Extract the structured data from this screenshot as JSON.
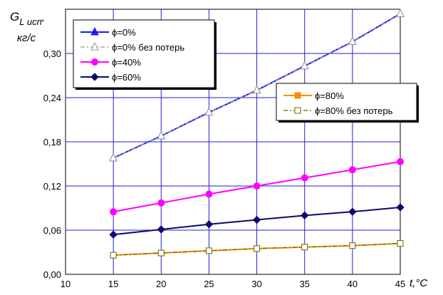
{
  "chart_data": {
    "type": "line",
    "ylabel_main": "G",
    "ylabel_sub": "L исп",
    "ylabel_sep": ",",
    "ylabel_units": "кг/с",
    "xlabel": "t,°C",
    "xlim": [
      10,
      45
    ],
    "ylim": [
      0,
      0.36
    ],
    "x_ticks": [
      "10",
      "15",
      "20",
      "25",
      "30",
      "35",
      "40",
      "45"
    ],
    "y_ticks": [
      "0,00",
      "0,06",
      "0,12",
      "0,18",
      "0,24",
      "0,30"
    ],
    "grid": true,
    "grid_color": "#2222cc",
    "x": [
      15,
      20,
      25,
      30,
      35,
      40,
      45
    ],
    "series": [
      {
        "name": "ϕ=0%",
        "values": [
          0.158,
          0.188,
          0.22,
          0.25,
          0.283,
          0.316,
          0.354
        ],
        "color": "#1a1aff",
        "marker": "triangle-filled",
        "dash": "solid"
      },
      {
        "name": "ϕ=0%  без потерь",
        "values": [
          0.158,
          0.188,
          0.22,
          0.25,
          0.283,
          0.316,
          0.354
        ],
        "color": "#999999",
        "marker": "triangle-open",
        "dash": "dashed"
      },
      {
        "name": "ϕ=40%",
        "values": [
          0.085,
          0.097,
          0.109,
          0.12,
          0.131,
          0.142,
          0.153
        ],
        "color": "#ff00ff",
        "marker": "circle-filled",
        "dash": "solid"
      },
      {
        "name": "ϕ=60%",
        "values": [
          0.054,
          0.061,
          0.068,
          0.074,
          0.08,
          0.085,
          0.091
        ],
        "color": "#0a0a6e",
        "marker": "diamond-filled",
        "dash": "solid"
      },
      {
        "name": "ϕ=80%",
        "values": [
          0.026,
          0.029,
          0.032,
          0.035,
          0.037,
          0.039,
          0.042
        ],
        "color": "#ff8c00",
        "marker": "square-filled",
        "dash": "solid"
      },
      {
        "name": "ϕ=80% без потерь",
        "values": [
          0.026,
          0.029,
          0.032,
          0.035,
          0.037,
          0.039,
          0.042
        ],
        "color": "#6b6b00",
        "marker": "square-open",
        "dash": "dashed"
      }
    ],
    "legends": [
      {
        "position": "top-left",
        "series": [
          0,
          1,
          2,
          3
        ]
      },
      {
        "position": "middle-right",
        "series": [
          4,
          5
        ]
      }
    ]
  }
}
